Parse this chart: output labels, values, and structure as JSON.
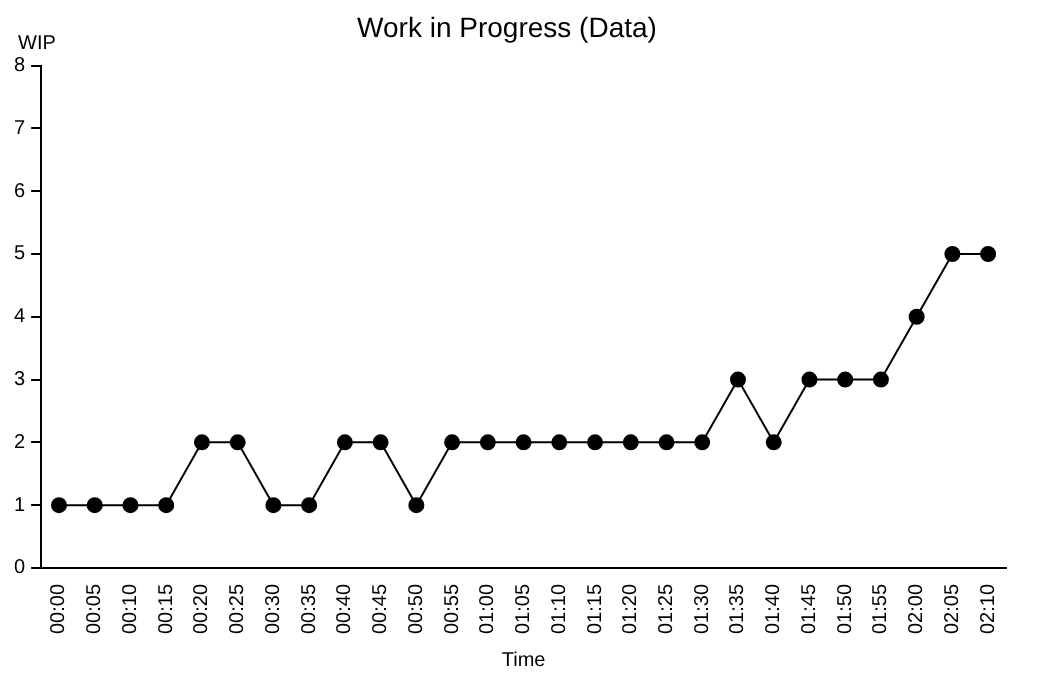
{
  "chart_data": {
    "type": "line",
    "title": "Work in Progress (Data)",
    "xlabel": "Time",
    "ylabel": "WIP",
    "categories": [
      "00:00",
      "00:05",
      "00:10",
      "00:15",
      "00:20",
      "00:25",
      "00:30",
      "00:35",
      "00:40",
      "00:45",
      "00:50",
      "00:55",
      "01:00",
      "01:05",
      "01:10",
      "01:15",
      "01:20",
      "01:25",
      "01:30",
      "01:35",
      "01:40",
      "01:45",
      "01:50",
      "01:55",
      "02:00",
      "02:05",
      "02:10"
    ],
    "series": [
      {
        "color": "#000000",
        "values": [
          1,
          1,
          1,
          1,
          2,
          2,
          1,
          1,
          2,
          2,
          1,
          2,
          2,
          2,
          2,
          2,
          2,
          2,
          2,
          3,
          2,
          3,
          3,
          3,
          4,
          5,
          5
        ]
      }
    ],
    "ylim": [
      0,
      8
    ],
    "yticks": [
      0,
      1,
      2,
      3,
      4,
      5,
      6,
      7,
      8
    ],
    "grid": false,
    "legend": false,
    "marker": "circle",
    "line_style": "solid"
  }
}
